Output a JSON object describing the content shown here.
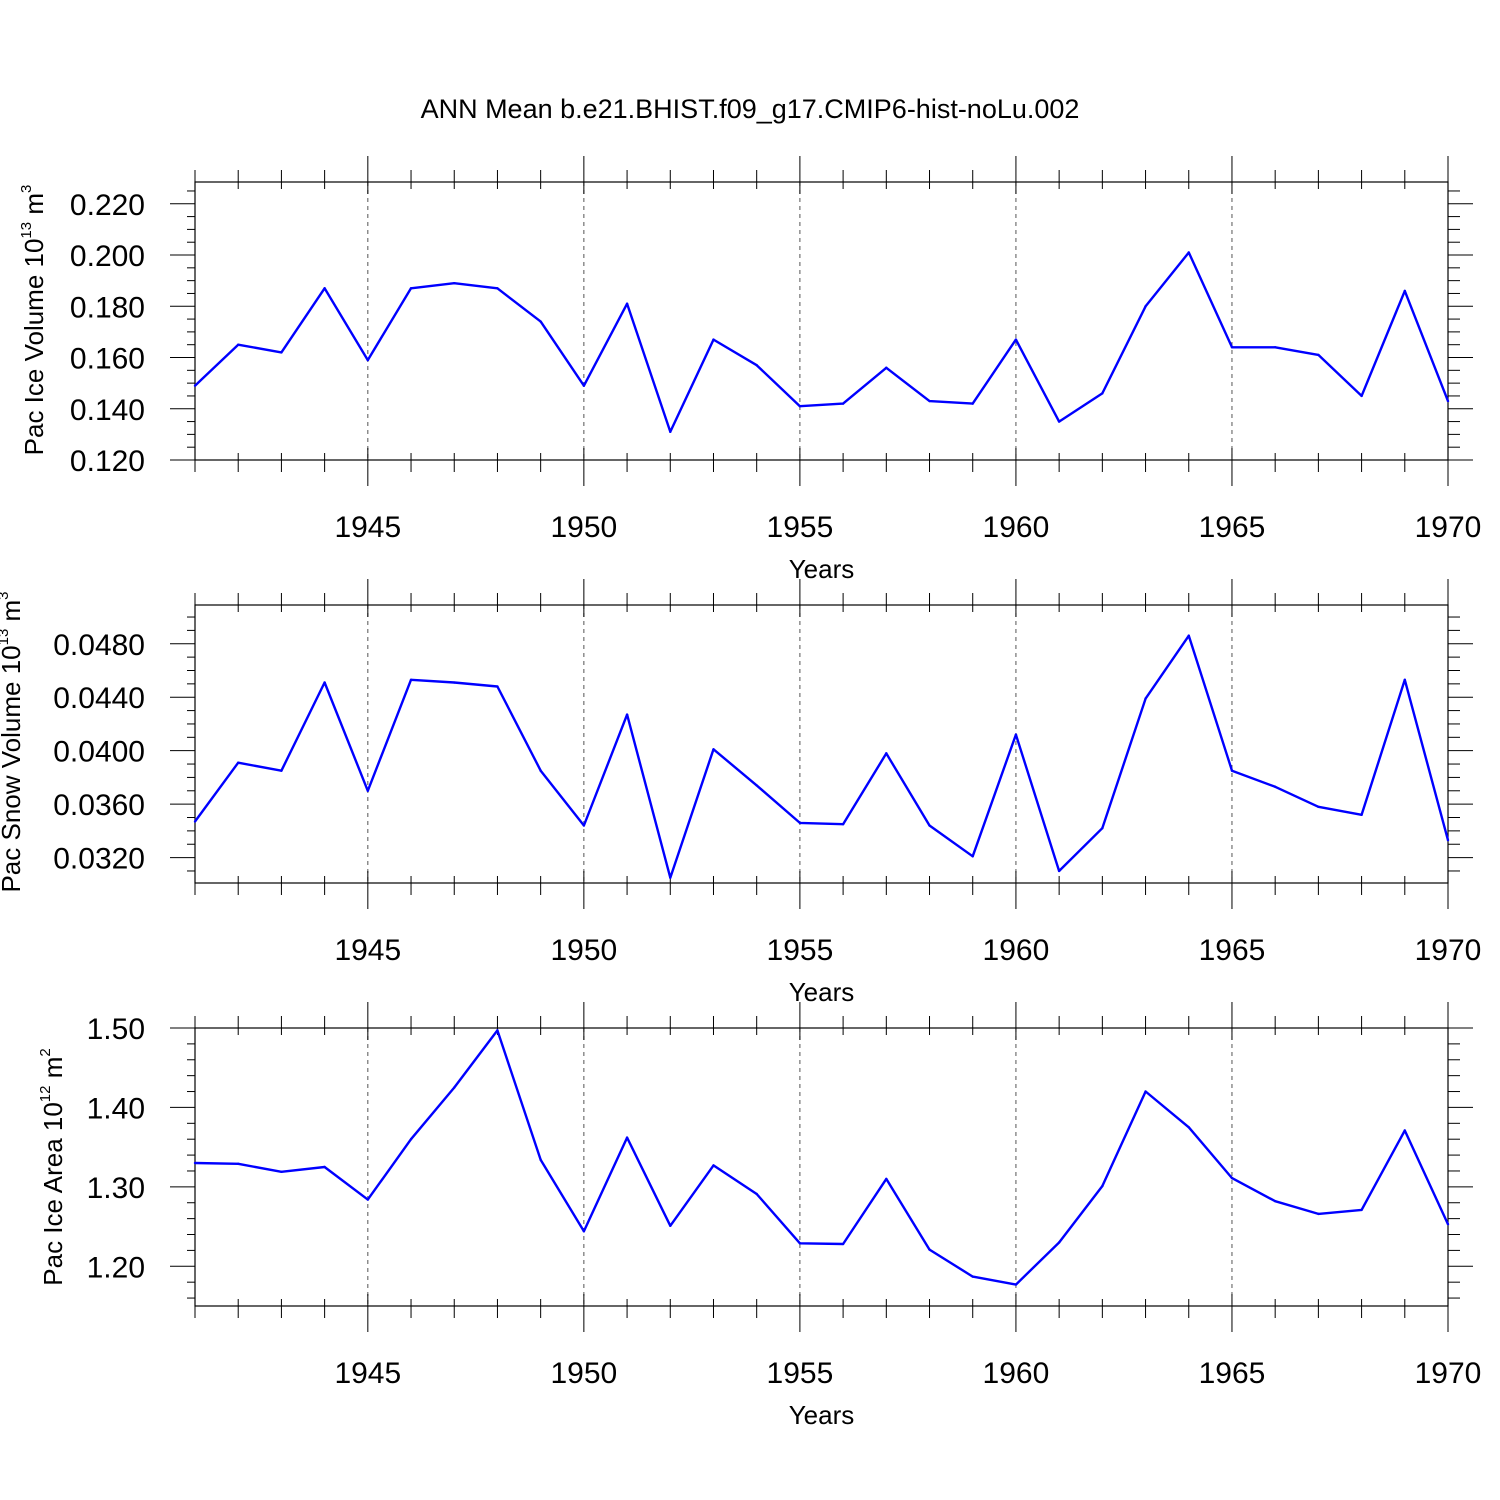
{
  "figure_title": "ANN Mean b.e21.BHIST.f09_g17.CMIP6-hist-noLu.002",
  "colors": {
    "series": "#0000ff",
    "axes": "#000000"
  },
  "chart_data": [
    {
      "type": "line",
      "title": "ANN Mean b.e21.BHIST.f09_g17.CMIP6-hist-noLu.002",
      "ylabel_base": "Pac Ice Volume 10",
      "ylabel_exp": "13",
      "ylabel_unit": " m",
      "ylabel_unit_exp": "3",
      "xlabel": "Years",
      "xlim": [
        1941,
        1970
      ],
      "ylim": [
        0.12,
        0.2285
      ],
      "yticks": [
        0.12,
        0.14,
        0.16,
        0.18,
        0.2,
        0.22
      ],
      "ytick_labels": [
        "0.120",
        "0.140",
        "0.160",
        "0.180",
        "0.200",
        "0.220"
      ],
      "yminor_step": 0.005,
      "xticks": [
        1945,
        1950,
        1955,
        1960,
        1965,
        1970
      ],
      "xtick_labels": [
        "1945",
        "1950",
        "1955",
        "1960",
        "1965",
        "1970"
      ],
      "x": [
        1941,
        1942,
        1943,
        1944,
        1945,
        1946,
        1947,
        1948,
        1949,
        1950,
        1951,
        1952,
        1953,
        1954,
        1955,
        1956,
        1957,
        1958,
        1959,
        1960,
        1961,
        1962,
        1963,
        1964,
        1965,
        1966,
        1967,
        1968,
        1969,
        1970
      ],
      "values": [
        0.149,
        0.165,
        0.162,
        0.187,
        0.159,
        0.187,
        0.189,
        0.187,
        0.174,
        0.149,
        0.181,
        0.131,
        0.167,
        0.157,
        0.141,
        0.142,
        0.156,
        0.143,
        0.142,
        0.167,
        0.135,
        0.146,
        0.18,
        0.201,
        0.164,
        0.164,
        0.161,
        0.145,
        0.186,
        0.143
      ]
    },
    {
      "type": "line",
      "title": "",
      "ylabel_base": "Pac Snow Volume 10",
      "ylabel_exp": "13",
      "ylabel_unit": " m",
      "ylabel_unit_exp": "3",
      "xlabel": "Years",
      "xlim": [
        1941,
        1970
      ],
      "ylim": [
        0.0301,
        0.0509
      ],
      "yticks": [
        0.032,
        0.036,
        0.04,
        0.044,
        0.048
      ],
      "ytick_labels": [
        "0.0320",
        "0.0360",
        "0.0400",
        "0.0440",
        "0.0480"
      ],
      "yminor_step": 0.001,
      "xticks": [
        1945,
        1950,
        1955,
        1960,
        1965,
        1970
      ],
      "xtick_labels": [
        "1945",
        "1950",
        "1955",
        "1960",
        "1965",
        "1970"
      ],
      "x": [
        1941,
        1942,
        1943,
        1944,
        1945,
        1946,
        1947,
        1948,
        1949,
        1950,
        1951,
        1952,
        1953,
        1954,
        1955,
        1956,
        1957,
        1958,
        1959,
        1960,
        1961,
        1962,
        1963,
        1964,
        1965,
        1966,
        1967,
        1968,
        1969,
        1970
      ],
      "values": [
        0.0347,
        0.0391,
        0.0385,
        0.0451,
        0.037,
        0.0453,
        0.0451,
        0.0448,
        0.0385,
        0.0344,
        0.0427,
        0.0305,
        0.0401,
        0.0374,
        0.0346,
        0.0345,
        0.0398,
        0.0344,
        0.0321,
        0.0412,
        0.031,
        0.0342,
        0.0439,
        0.0486,
        0.0385,
        0.0373,
        0.0358,
        0.0352,
        0.0453,
        0.0333
      ]
    },
    {
      "type": "line",
      "title": "",
      "ylabel_base": "Pac Ice Area 10",
      "ylabel_exp": "12",
      "ylabel_unit": " m",
      "ylabel_unit_exp": "2",
      "xlabel": "Years",
      "xlim": [
        1941,
        1970
      ],
      "ylim": [
        1.15,
        1.5
      ],
      "yticks": [
        1.2,
        1.3,
        1.4,
        1.5
      ],
      "ytick_labels": [
        "1.20",
        "1.30",
        "1.40",
        "1.50"
      ],
      "yminor_step": 0.02,
      "xticks": [
        1945,
        1950,
        1955,
        1960,
        1965,
        1970
      ],
      "xtick_labels": [
        "1945",
        "1950",
        "1955",
        "1960",
        "1965",
        "1970"
      ],
      "x": [
        1941,
        1942,
        1943,
        1944,
        1945,
        1946,
        1947,
        1948,
        1949,
        1950,
        1951,
        1952,
        1953,
        1954,
        1955,
        1956,
        1957,
        1958,
        1959,
        1960,
        1961,
        1962,
        1963,
        1964,
        1965,
        1966,
        1967,
        1968,
        1969,
        1970
      ],
      "values": [
        1.33,
        1.329,
        1.319,
        1.325,
        1.284,
        1.36,
        1.425,
        1.497,
        1.334,
        1.244,
        1.362,
        1.251,
        1.327,
        1.291,
        1.229,
        1.228,
        1.31,
        1.221,
        1.187,
        1.177,
        1.23,
        1.301,
        1.42,
        1.375,
        1.311,
        1.282,
        1.266,
        1.271,
        1.371,
        1.253
      ]
    }
  ]
}
